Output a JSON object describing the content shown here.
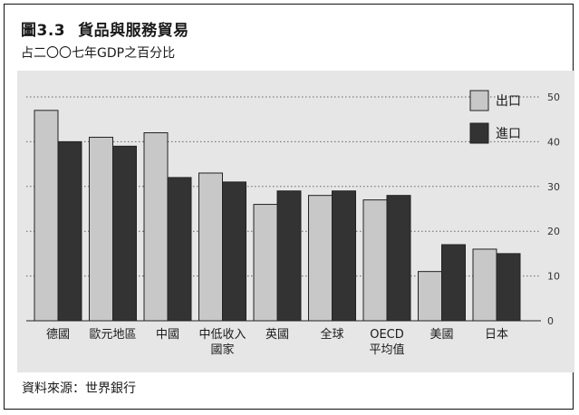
{
  "figure": {
    "number": "圖3.3",
    "title": "貨品與服務貿易",
    "subtitle": "占二〇〇七年GDP之百分比",
    "source": "資料來源：世界銀行"
  },
  "colors": {
    "export": "#c8c8c8",
    "import": "#333333",
    "panel": "#e6e6e6",
    "gridline": "#666666"
  },
  "chart_data": {
    "type": "bar",
    "categories": [
      "德國",
      "歐元地區",
      "中國",
      "中低收入\n國家",
      "英國",
      "全球",
      "OECD\n平均值",
      "美國",
      "日本"
    ],
    "series": [
      {
        "name": "出口",
        "values": [
          47,
          41,
          42,
          33,
          26,
          28,
          27,
          11,
          16
        ]
      },
      {
        "name": "進口",
        "values": [
          40,
          39,
          32,
          31,
          29,
          29,
          28,
          17,
          15
        ]
      }
    ],
    "yticks": [
      0,
      10,
      20,
      30,
      40,
      50
    ],
    "ylim": [
      0,
      50
    ],
    "grid": true,
    "legend": "top-right",
    "yaxis_side": "right"
  }
}
